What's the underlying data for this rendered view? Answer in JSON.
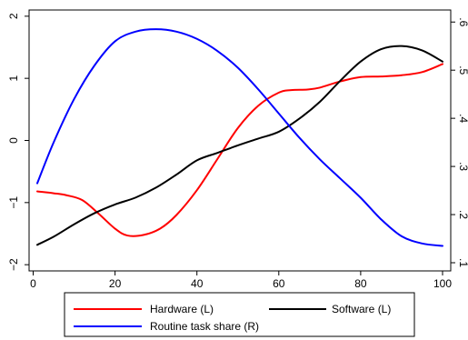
{
  "chart_data": {
    "type": "line",
    "x_ticks": [
      0,
      20,
      40,
      60,
      80,
      100
    ],
    "xlim": [
      -1,
      102
    ],
    "y_left": {
      "ticks": [
        -2,
        -1,
        0,
        1,
        2
      ],
      "tick_labels": [
        "−2",
        "−1",
        "0",
        "1",
        "2"
      ],
      "lim": [
        -2.1,
        2.1
      ]
    },
    "y_right": {
      "ticks": [
        0.1,
        0.2,
        0.3,
        0.4,
        0.5,
        0.6
      ],
      "tick_labels": [
        ".1",
        ".2",
        ".3",
        ".4",
        ".5",
        ".6"
      ],
      "lim": [
        0.083,
        0.625
      ]
    },
    "grid": false,
    "legend_position": "bottom",
    "series": [
      {
        "name": "Hardware (L)",
        "axis": "left",
        "color": "#ff0000",
        "x": [
          1,
          5,
          8,
          12,
          16,
          20,
          23,
          27,
          31,
          35,
          40,
          45,
          50,
          55,
          60,
          63,
          67,
          70,
          75,
          80,
          85,
          90,
          95,
          100
        ],
        "y": [
          -0.82,
          -0.85,
          -0.88,
          -0.96,
          -1.18,
          -1.42,
          -1.53,
          -1.52,
          -1.42,
          -1.2,
          -0.8,
          -0.3,
          0.2,
          0.56,
          0.77,
          0.81,
          0.82,
          0.85,
          0.95,
          1.02,
          1.03,
          1.05,
          1.1,
          1.23
        ]
      },
      {
        "name": "Software (L)",
        "axis": "left",
        "color": "#000000",
        "x": [
          1,
          5,
          10,
          15,
          20,
          25,
          30,
          35,
          40,
          45,
          50,
          55,
          60,
          65,
          70,
          75,
          80,
          85,
          90,
          95,
          100
        ],
        "y": [
          -1.68,
          -1.55,
          -1.35,
          -1.17,
          -1.03,
          -0.92,
          -0.76,
          -0.55,
          -0.32,
          -0.2,
          -0.08,
          0.03,
          0.14,
          0.35,
          0.62,
          0.96,
          1.27,
          1.47,
          1.52,
          1.45,
          1.27
        ]
      },
      {
        "name": "Routine task share (R)",
        "axis": "right",
        "color": "#0000ff",
        "x": [
          1,
          5,
          10,
          15,
          20,
          25,
          30,
          35,
          40,
          45,
          50,
          55,
          60,
          65,
          70,
          75,
          80,
          85,
          90,
          95,
          100
        ],
        "y": [
          0.265,
          0.35,
          0.44,
          0.51,
          0.56,
          0.58,
          0.585,
          0.58,
          0.565,
          0.54,
          0.505,
          0.46,
          0.41,
          0.36,
          0.315,
          0.275,
          0.235,
          0.19,
          0.155,
          0.14,
          0.135
        ]
      }
    ]
  }
}
